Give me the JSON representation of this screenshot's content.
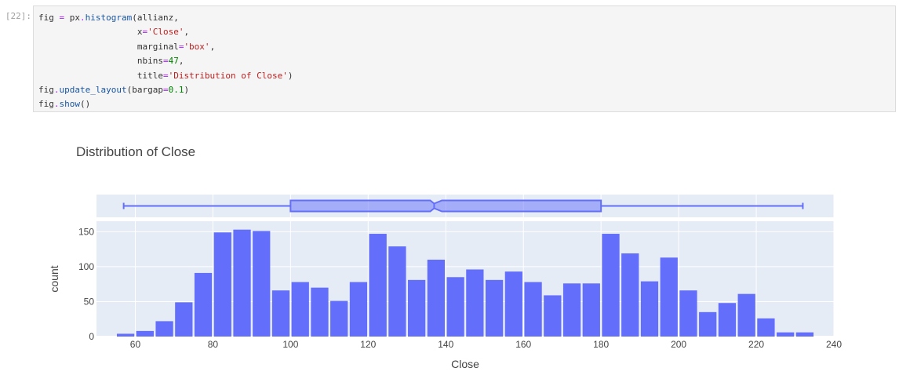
{
  "cell": {
    "prompt": "[22]:",
    "code_lines": [
      [
        {
          "t": "fig ",
          "c": ""
        },
        {
          "t": "=",
          "c": "op"
        },
        {
          "t": " px",
          "c": ""
        },
        {
          "t": ".",
          "c": "op"
        },
        {
          "t": "histogram",
          "c": "kw"
        },
        {
          "t": "(allianz,",
          "c": ""
        }
      ],
      [
        {
          "t": "                   x",
          "c": ""
        },
        {
          "t": "=",
          "c": "op"
        },
        {
          "t": "'Close'",
          "c": "str"
        },
        {
          "t": ",",
          "c": ""
        }
      ],
      [
        {
          "t": "                   marginal",
          "c": ""
        },
        {
          "t": "=",
          "c": "op"
        },
        {
          "t": "'box'",
          "c": "str"
        },
        {
          "t": ",",
          "c": ""
        }
      ],
      [
        {
          "t": "                   nbins",
          "c": ""
        },
        {
          "t": "=",
          "c": "op"
        },
        {
          "t": "47",
          "c": "num"
        },
        {
          "t": ",",
          "c": ""
        }
      ],
      [
        {
          "t": "                   title",
          "c": ""
        },
        {
          "t": "=",
          "c": "op"
        },
        {
          "t": "'Distribution of Close'",
          "c": "str"
        },
        {
          "t": ")",
          "c": ""
        }
      ],
      [
        {
          "t": "fig",
          "c": ""
        },
        {
          "t": ".",
          "c": "op"
        },
        {
          "t": "update_layout",
          "c": "kw"
        },
        {
          "t": "(bargap",
          "c": ""
        },
        {
          "t": "=",
          "c": "op"
        },
        {
          "t": "0.1",
          "c": "num"
        },
        {
          "t": ")",
          "c": ""
        }
      ],
      [
        {
          "t": "fig",
          "c": ""
        },
        {
          "t": ".",
          "c": "op"
        },
        {
          "t": "show",
          "c": "kw"
        },
        {
          "t": "()",
          "c": ""
        }
      ]
    ]
  },
  "chart_data": {
    "type": "bar",
    "title": "Distribution of Close",
    "xlabel": "Close",
    "ylabel": "count",
    "xlim": [
      50,
      240
    ],
    "ylim": [
      0,
      165
    ],
    "xticks": [
      60,
      80,
      100,
      120,
      140,
      160,
      180,
      200,
      220,
      240
    ],
    "yticks": [
      0,
      50,
      100,
      150
    ],
    "bin_width": 5,
    "bin_start": 55,
    "counts": [
      4,
      8,
      22,
      49,
      91,
      149,
      153,
      151,
      66,
      78,
      70,
      51,
      78,
      147,
      129,
      81,
      110,
      85,
      96,
      81,
      93,
      78,
      59,
      76,
      76,
      147,
      119,
      79,
      113,
      66,
      35,
      48,
      61,
      26,
      6,
      6
    ],
    "box": {
      "min": 57,
      "q1": 100,
      "median": 137,
      "q3": 180,
      "max": 232,
      "notch_low": 136,
      "notch_high": 139
    },
    "colors": {
      "bar": "#636efa",
      "plot_bg": "#e5ecf6",
      "grid": "#ffffff"
    },
    "grid": true
  }
}
